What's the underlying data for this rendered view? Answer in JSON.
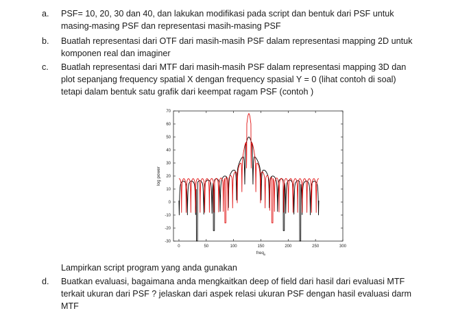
{
  "items": [
    {
      "marker": "a.",
      "lines": [
        "PSF= 10, 20, 30 dan 40, dan lakukan modifikasi pada script dan bentuk dari PSF untuk",
        "masing-masing PSF dan representasi masih-masing PSF"
      ]
    },
    {
      "marker": "b.",
      "lines": [
        "Buatlah representasi dari OTF dari masih-masih PSF dalam representasi mapping 2D untuk",
        "komponen real dan imaginer"
      ]
    },
    {
      "marker": "c.",
      "lines": [
        "Buatlah representasi dari  MTF dari masih-masih PSF dalam representasi mapping 3D  dan",
        "plot sepanjang frequency spatial X dengan frequency spasial Y = 0 (lihat contoh di soal)",
        "tetapi dalam bentuk satu grafik dari keempat ragam PSF (contoh )"
      ]
    }
  ],
  "attachment_note": "Lampirkan script program yang anda gunakan",
  "item_d": {
    "marker": "d.",
    "lines": [
      "Buatkan evaluasi, bagaimana anda mengkaitkan deep of field dari  hasil dari evaluasi MTF",
      "terkait ukuran dari PSF ? jelaskan dari aspek relasi ukuran PSF dengan hasil evaluasi darm",
      "MTF"
    ]
  },
  "chart_data": {
    "type": "line",
    "xlabel": "freq",
    "xlabel_subscript": "x",
    "ylabel": "log power",
    "xlim": [
      -10,
      300
    ],
    "ylim": [
      -30,
      70
    ],
    "xticks": [
      0,
      50,
      100,
      150,
      200,
      250,
      300
    ],
    "yticks": [
      -30,
      -20,
      -10,
      0,
      10,
      20,
      30,
      40,
      50,
      60,
      70
    ],
    "grid": false,
    "center": 128,
    "series": [
      {
        "color": "#000000",
        "peak": 50,
        "lobe_period": 15.0,
        "envelope_decay": 0.048,
        "floor": 16,
        "nulls": [
          [
            33,
            -30
          ],
          [
            64,
            -22
          ],
          [
            128,
            50
          ],
          [
            192,
            -22
          ],
          [
            222,
            -30
          ]
        ]
      },
      {
        "color": "#e01010",
        "peak": 68,
        "lobe_period": 8.5,
        "envelope_decay": 0.09,
        "floor": 18,
        "nulls": [
          [
            85,
            -16
          ],
          [
            128,
            68
          ],
          [
            171,
            -16
          ]
        ]
      }
    ]
  }
}
